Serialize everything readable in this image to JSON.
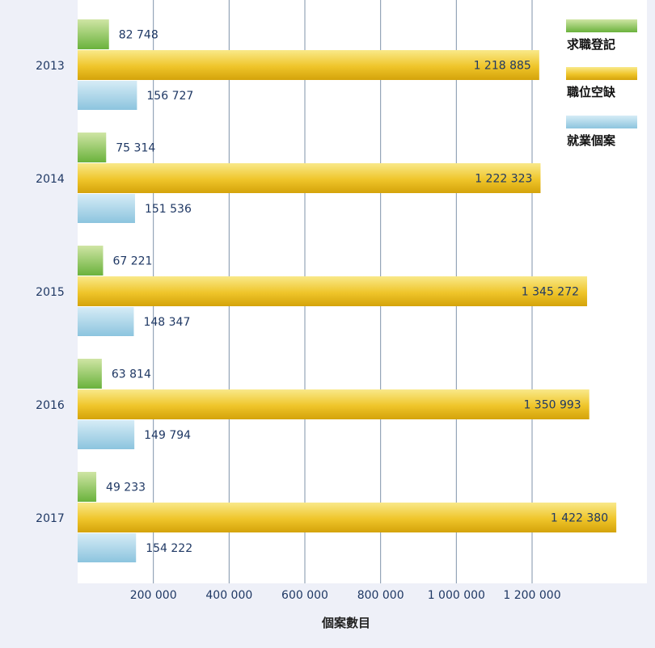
{
  "chart_data": {
    "type": "bar",
    "orientation": "horizontal",
    "categories": [
      "2013",
      "2014",
      "2015",
      "2016",
      "2017"
    ],
    "series": [
      {
        "name": "求職登記",
        "values": [
          82748,
          75314,
          67221,
          63814,
          49233
        ],
        "value_labels": [
          "82 748",
          "75 314",
          "67 221",
          "63 814",
          "49 233"
        ]
      },
      {
        "name": "職位空缺",
        "values": [
          1218885,
          1222323,
          1345272,
          1350993,
          1422380
        ],
        "value_labels": [
          "1 218 885",
          "1 222 323",
          "1 345 272",
          "1 350 993",
          "1 422 380"
        ]
      },
      {
        "name": "就業個案",
        "values": [
          156727,
          151536,
          148347,
          149794,
          154222
        ],
        "value_labels": [
          "156 727",
          "151 536",
          "148 347",
          "149 794",
          "154 222"
        ]
      }
    ],
    "xlabel": "個案數目",
    "ylabel": "",
    "xlim": [
      0,
      1500000
    ],
    "xticks": [
      200000,
      400000,
      600000,
      800000,
      1000000,
      1200000
    ],
    "xtick_labels": [
      "200 000",
      "400 000",
      "600 000",
      "800 000",
      "1 000 000",
      "1 200 000"
    ],
    "grid": "vertical",
    "legend_position": "top-right",
    "colors": {
      "green_light": "#c9e29a",
      "green_dark": "#6cb33f",
      "gold_light": "#f8e27a",
      "gold_dark": "#d8aa0c",
      "blue_light": "#cfe8f3",
      "blue_dark": "#8ec6e0",
      "gridline": "#7f93aa",
      "background": "#eef0f8",
      "plot": "#ffffff"
    }
  }
}
